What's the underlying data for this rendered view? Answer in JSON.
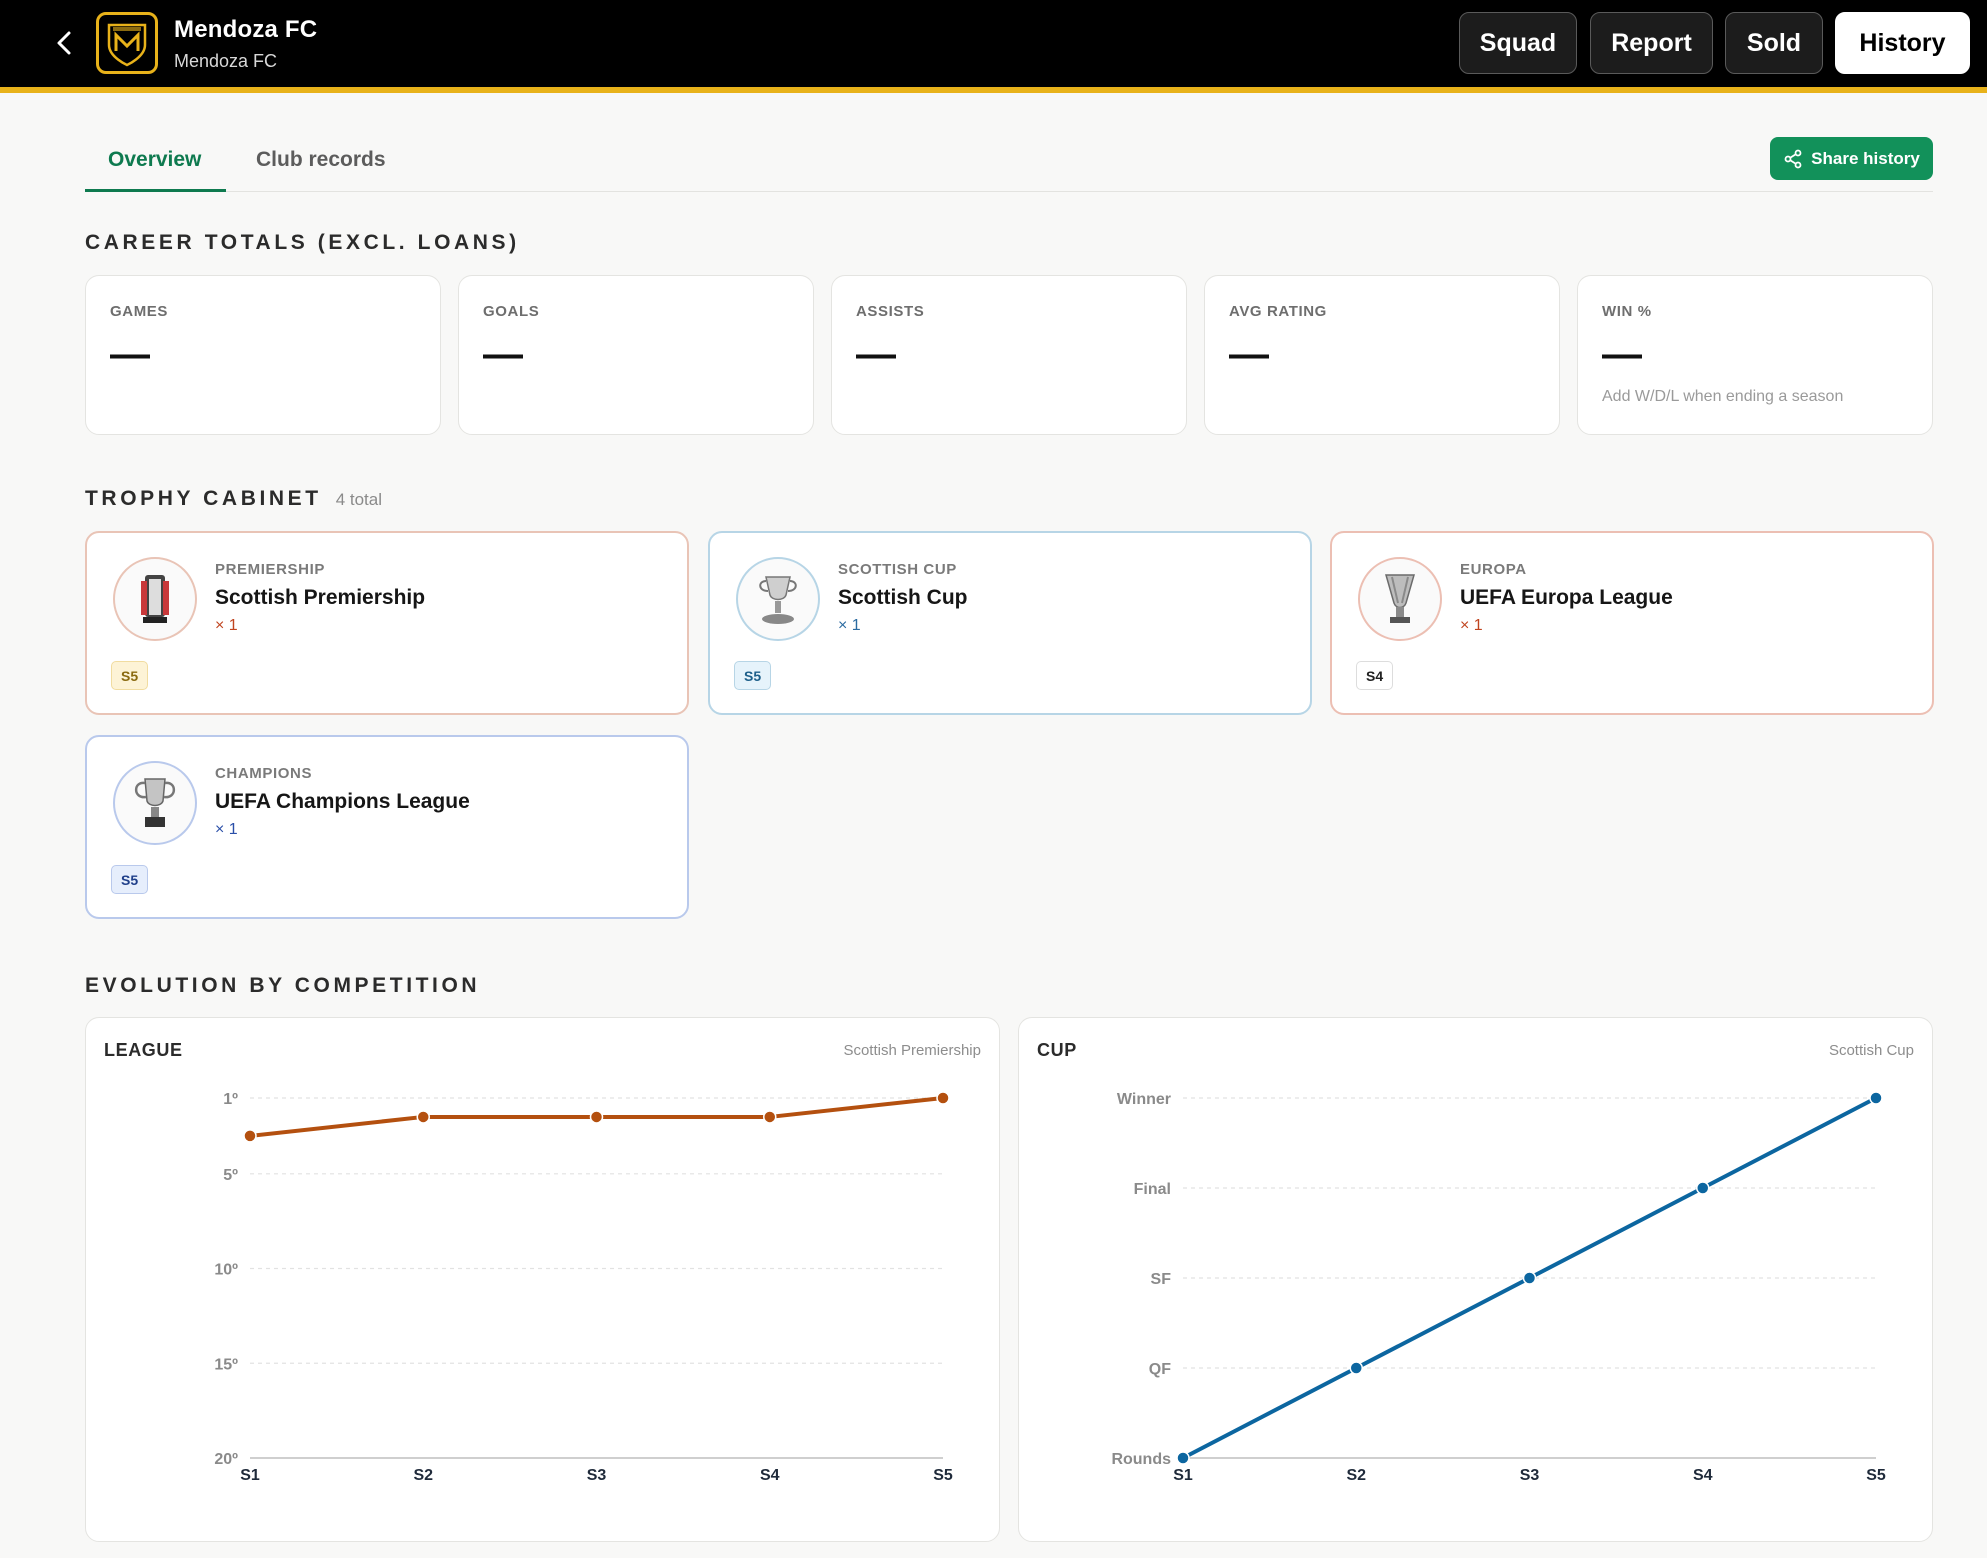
{
  "header": {
    "club_name": "Mendoza FC",
    "club_subtitle": "Mendoza FC",
    "nav": [
      {
        "label": "Squad",
        "active": false
      },
      {
        "label": "Report",
        "active": false
      },
      {
        "label": "Sold",
        "active": false
      },
      {
        "label": "History",
        "active": true
      }
    ]
  },
  "tabs": [
    {
      "label": "Overview",
      "active": true
    },
    {
      "label": "Club records",
      "active": false
    }
  ],
  "share_label": "Share history",
  "career": {
    "title": "CAREER TOTALS (EXCL. LOANS)",
    "stats": [
      {
        "label": "GAMES",
        "value": "—"
      },
      {
        "label": "GOALS",
        "value": "—"
      },
      {
        "label": "ASSISTS",
        "value": "—"
      },
      {
        "label": "AVG RATING",
        "value": "—"
      },
      {
        "label": "WIN %",
        "value": "—",
        "hint": "Add W/D/L when ending a season"
      }
    ]
  },
  "trophies": {
    "title": "TROPHY CABINET",
    "total": "4 total",
    "items": [
      {
        "category": "PREMIERSHIP",
        "name": "Scottish Premiership",
        "count": "× 1",
        "season": "S5",
        "icon": "premiership-trophy-icon",
        "accent": "#e9c4b6",
        "count_color": "#c0441f",
        "badge_bg": "#fdf3d6",
        "badge_border": "#f1dca0",
        "badge_color": "#8a6a10"
      },
      {
        "category": "SCOTTISH CUP",
        "name": "Scottish Cup",
        "count": "× 1",
        "season": "S5",
        "icon": "scottish-cup-trophy-icon",
        "accent": "#b7d5e6",
        "count_color": "#2a6aa0",
        "badge_bg": "#e6f3fb",
        "badge_border": "#b7d5e6",
        "badge_color": "#1d5f8a"
      },
      {
        "category": "EUROPA",
        "name": "UEFA Europa League",
        "count": "× 1",
        "season": "S4",
        "icon": "europa-league-trophy-icon",
        "accent": "#ecbfb3",
        "count_color": "#c0441f",
        "badge_bg": "#ffffff",
        "badge_border": "#dddddd",
        "badge_color": "#222222"
      },
      {
        "category": "CHAMPIONS",
        "name": "UEFA Champions League",
        "count": "× 1",
        "season": "S5",
        "icon": "champions-league-trophy-icon",
        "accent": "#b9c9ec",
        "count_color": "#2a4fa8",
        "badge_bg": "#e6eefc",
        "badge_border": "#b9c9ec",
        "badge_color": "#1f3f8a"
      }
    ]
  },
  "evolution": {
    "title": "EVOLUTION BY COMPETITION"
  },
  "chart_data": [
    {
      "type": "line",
      "title": "LEAGUE",
      "subtitle": "Scottish Premiership",
      "x": [
        "S1",
        "S2",
        "S3",
        "S4",
        "S5"
      ],
      "y_tick_labels": [
        "1º",
        "5º",
        "10º",
        "15º",
        "20º"
      ],
      "y_tick_values": [
        1,
        5,
        10,
        15,
        20
      ],
      "series": [
        {
          "values": [
            3,
            2,
            2,
            2,
            1
          ]
        }
      ],
      "y_inverted": true,
      "ylim": [
        1,
        20
      ],
      "color": "#b4500f",
      "grid": true
    },
    {
      "type": "line",
      "title": "CUP",
      "subtitle": "Scottish Cup",
      "x": [
        "S1",
        "S2",
        "S3",
        "S4",
        "S5"
      ],
      "y_categories": [
        "Rounds",
        "QF",
        "SF",
        "Final",
        "Winner"
      ],
      "series": [
        {
          "values": [
            "Rounds",
            "QF",
            "SF",
            "Final",
            "Winner"
          ]
        }
      ],
      "color": "#0c66a0",
      "grid": true
    }
  ]
}
